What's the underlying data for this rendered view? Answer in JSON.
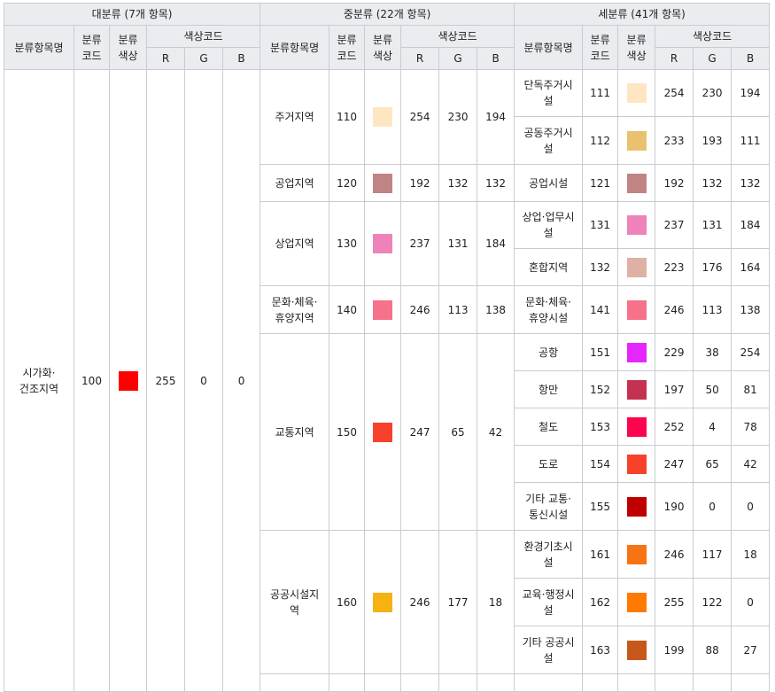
{
  "headers": {
    "group_major": "대분류 (7개 항목)",
    "group_middle": "중분류 (22개 항목)",
    "group_minor": "세분류 (41개 항목)",
    "item_name": "분류항목명",
    "code": "분류\n코드",
    "color": "분류\n색상",
    "color_code": "색상코드",
    "r": "R",
    "g": "G",
    "b": "B"
  },
  "major": {
    "name": "시가화·\n건조지역",
    "code": "100",
    "swatch": "#ff0000",
    "r": "255",
    "g": "0",
    "b": "0"
  },
  "middle": [
    {
      "name": "주거지역",
      "code": "110",
      "swatch": "#fee6c2",
      "r": "254",
      "g": "230",
      "b": "194"
    },
    {
      "name": "공업지역",
      "code": "120",
      "swatch": "#c08484",
      "r": "192",
      "g": "132",
      "b": "132"
    },
    {
      "name": "상업지역",
      "code": "130",
      "swatch": "#ed83b8",
      "r": "237",
      "g": "131",
      "b": "184"
    },
    {
      "name": "문화·체육·\n휴양지역",
      "code": "140",
      "swatch": "#f6718a",
      "r": "246",
      "g": "113",
      "b": "138"
    },
    {
      "name": "교통지역",
      "code": "150",
      "swatch": "#f7412a",
      "r": "247",
      "g": "65",
      "b": "42"
    },
    {
      "name": "공공시설지\n역",
      "code": "160",
      "swatch": "#f6b112",
      "r": "246",
      "g": "177",
      "b": "18"
    }
  ],
  "minor": [
    {
      "name": "단독주거시\n설",
      "code": "111",
      "swatch": "#fee6c2",
      "r": "254",
      "g": "230",
      "b": "194"
    },
    {
      "name": "공동주거시\n설",
      "code": "112",
      "swatch": "#e9c16f",
      "r": "233",
      "g": "193",
      "b": "111"
    },
    {
      "name": "공업시설",
      "code": "121",
      "swatch": "#c08484",
      "r": "192",
      "g": "132",
      "b": "132"
    },
    {
      "name": "상업·업무시\n설",
      "code": "131",
      "swatch": "#ed83b8",
      "r": "237",
      "g": "131",
      "b": "184"
    },
    {
      "name": "혼합지역",
      "code": "132",
      "swatch": "#dfb0a4",
      "r": "223",
      "g": "176",
      "b": "164"
    },
    {
      "name": "문화·체육·\n휴양시설",
      "code": "141",
      "swatch": "#f6718a",
      "r": "246",
      "g": "113",
      "b": "138"
    },
    {
      "name": "공항",
      "code": "151",
      "swatch": "#e526fe",
      "r": "229",
      "g": "38",
      "b": "254"
    },
    {
      "name": "항만",
      "code": "152",
      "swatch": "#c53251",
      "r": "197",
      "g": "50",
      "b": "81"
    },
    {
      "name": "철도",
      "code": "153",
      "swatch": "#fc044e",
      "r": "252",
      "g": "4",
      "b": "78"
    },
    {
      "name": "도로",
      "code": "154",
      "swatch": "#f7412a",
      "r": "247",
      "g": "65",
      "b": "42"
    },
    {
      "name": "기타 교통·\n통신시설",
      "code": "155",
      "swatch": "#be0000",
      "r": "190",
      "g": "0",
      "b": "0"
    },
    {
      "name": "환경기초시\n설",
      "code": "161",
      "swatch": "#f67512",
      "r": "246",
      "g": "117",
      "b": "18"
    },
    {
      "name": "교육·행정시\n설",
      "code": "162",
      "swatch": "#ff7a00",
      "r": "255",
      "g": "122",
      "b": "0"
    },
    {
      "name": "기타 공공시\n설",
      "code": "163",
      "swatch": "#c7581b",
      "r": "199",
      "g": "88",
      "b": "27"
    }
  ]
}
